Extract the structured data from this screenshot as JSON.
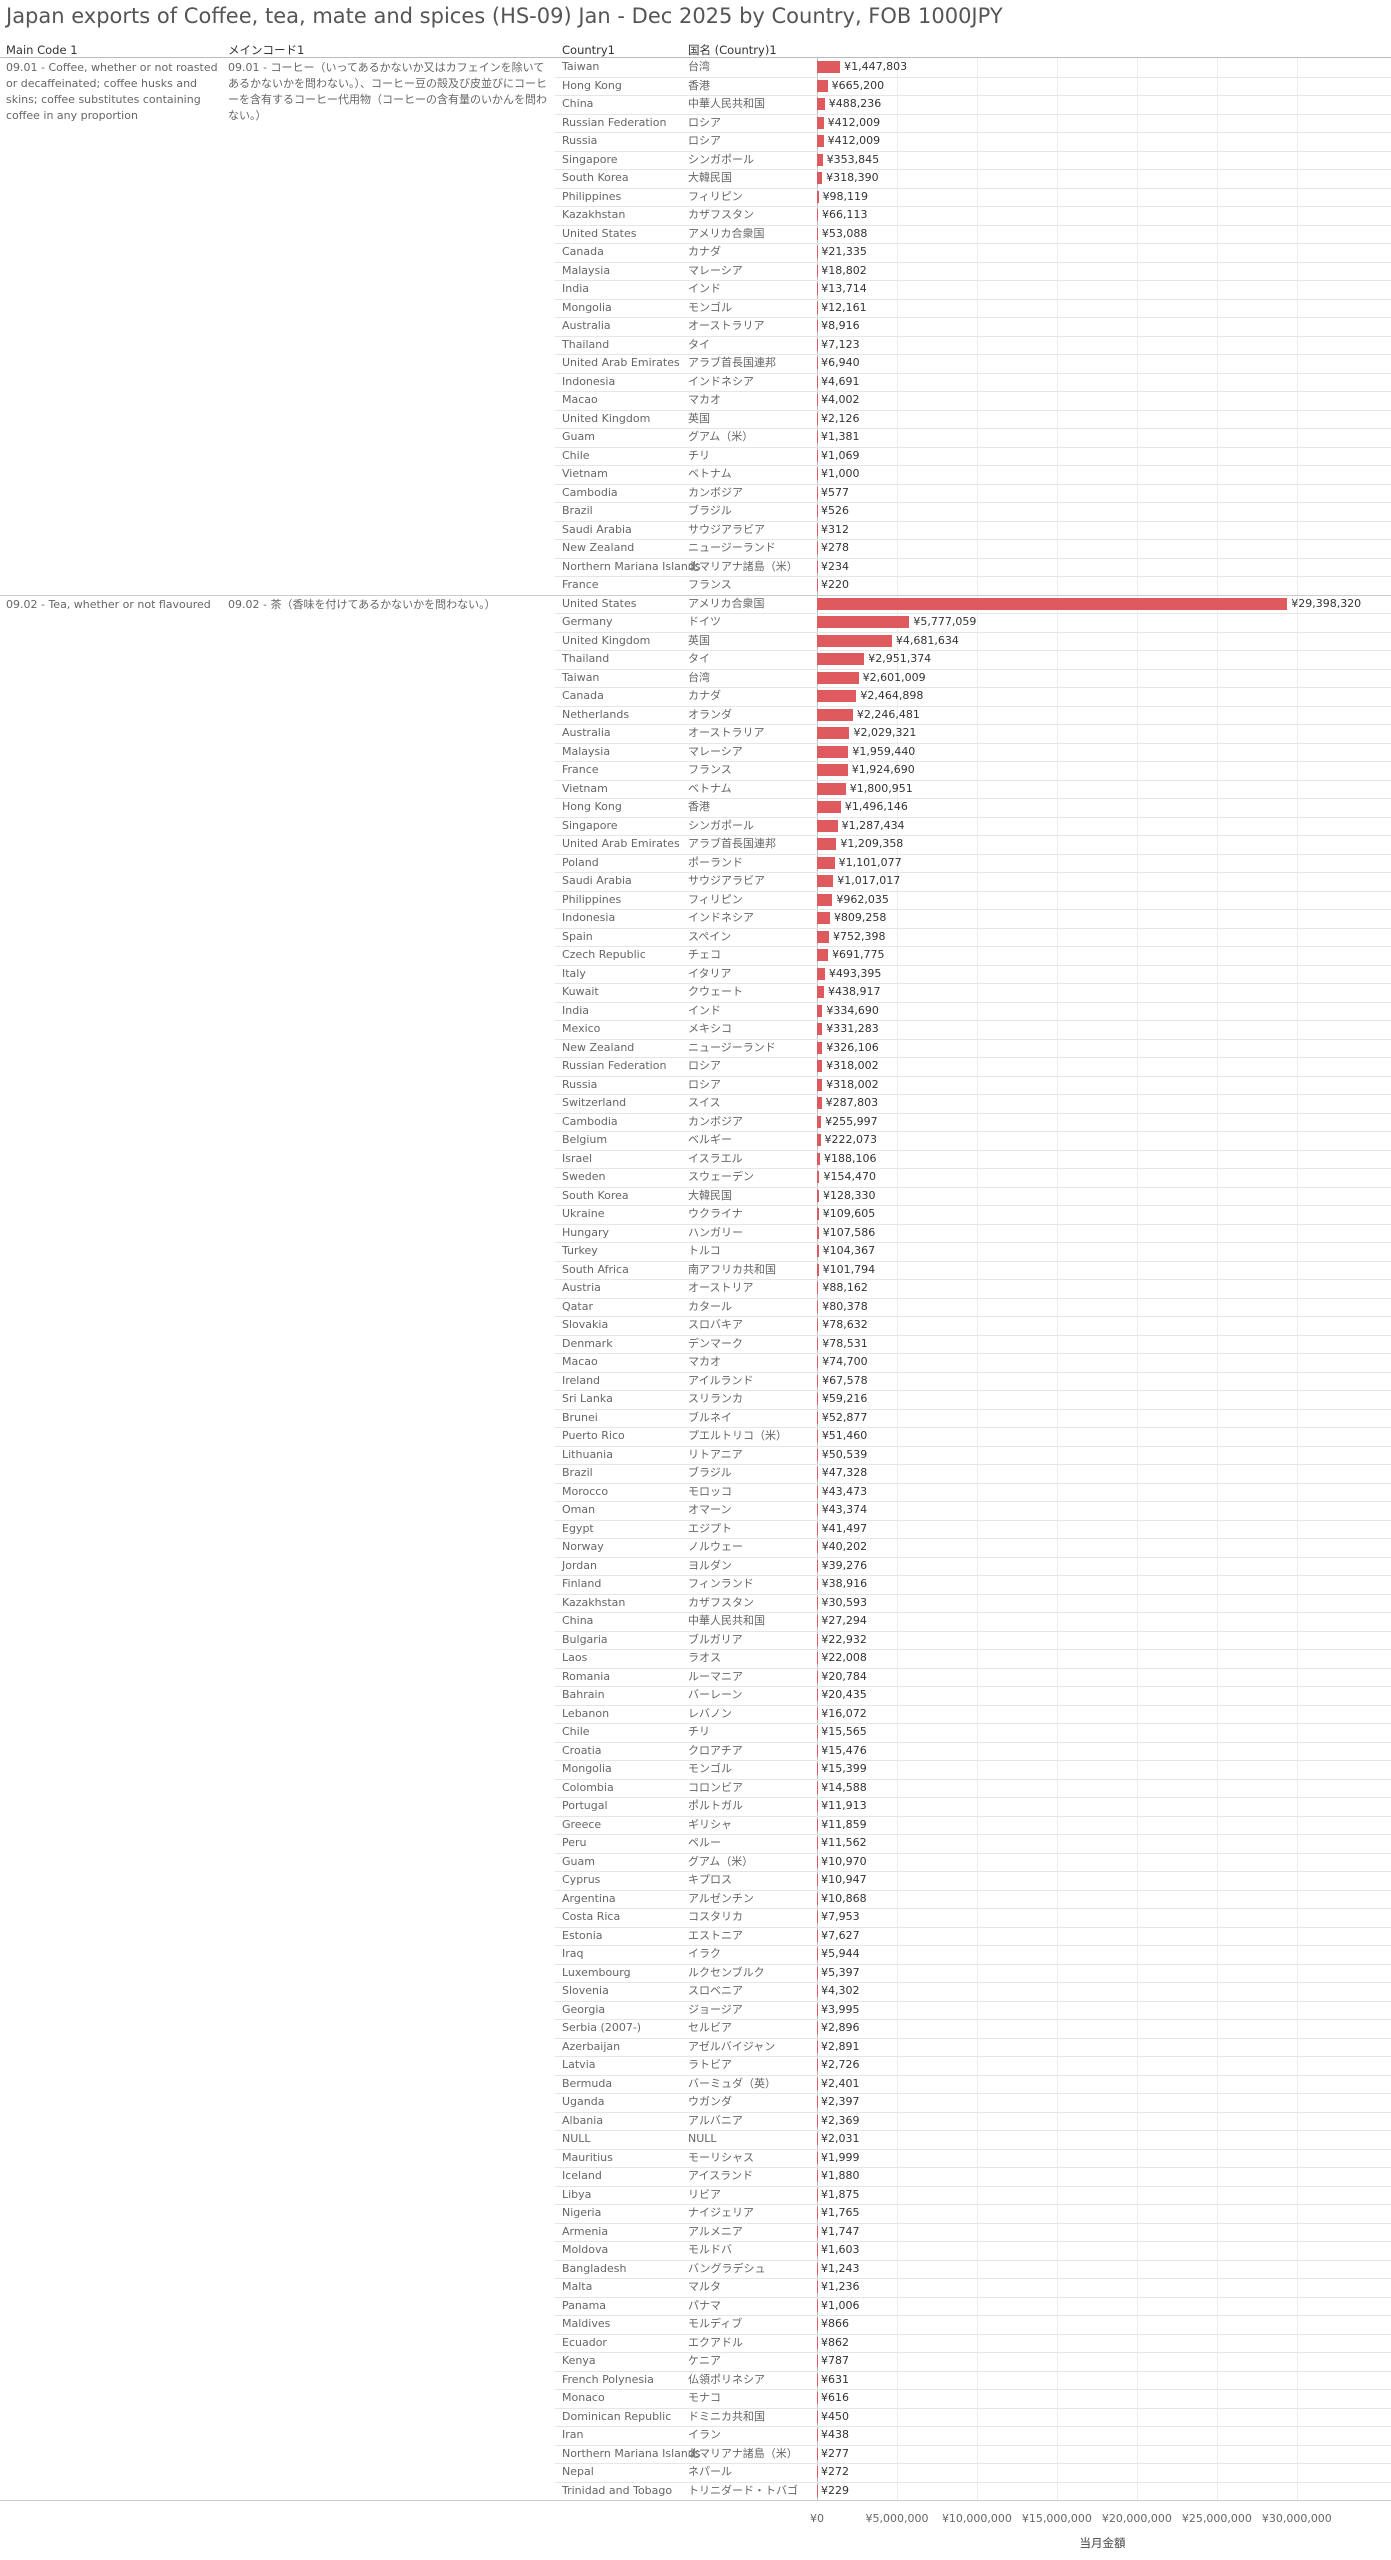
{
  "chart_data": {
    "type": "bar",
    "title": "Japan exports of Coffee, tea, mate and spices (HS-09) Jan - Dec 2025 by Country, FOB 1000JPY",
    "column_headers": [
      "Main Code 1",
      "メインコード1",
      "Country1",
      "国名 (Country)1"
    ],
    "x_label": "当月金額",
    "color": "#df5a5e",
    "grid": true,
    "xlim": [
      0,
      35700000
    ],
    "xticks": [
      {
        "value": 0,
        "label": "¥0"
      },
      {
        "value": 5000000,
        "label": "¥5,000,000"
      },
      {
        "value": 10000000,
        "label": "¥10,000,000"
      },
      {
        "value": 15000000,
        "label": "¥15,000,000"
      },
      {
        "value": 20000000,
        "label": "¥20,000,000"
      },
      {
        "value": 25000000,
        "label": "¥25,000,000"
      },
      {
        "value": 30000000,
        "label": "¥30,000,000"
      }
    ],
    "groups": [
      {
        "main_code": "09.01 - Coffee, whether or not roasted or decaffeinated; coffee husks and skins; coffee substitutes containing coffee in any proportion",
        "main_code_ja": "09.01 - コーヒー（いってあるかないか又はカフェインを除いてあるかないかを問わない。）、コーヒー豆の殻及び皮並びにコーヒーを含有するコーヒー代用物（コーヒーの含有量のいかんを問わない。）",
        "categories": [
          "Taiwan",
          "Hong Kong",
          "China",
          "Russian Federation",
          "Russia",
          "Singapore",
          "South Korea",
          "Philippines",
          "Kazakhstan",
          "United States",
          "Canada",
          "Malaysia",
          "India",
          "Mongolia",
          "Australia",
          "Thailand",
          "United Arab Emirates",
          "Indonesia",
          "Macao",
          "United Kingdom",
          "Guam",
          "Chile",
          "Vietnam",
          "Cambodia",
          "Brazil",
          "Saudi Arabia",
          "New Zealand",
          "Northern Mariana Islands",
          "France"
        ],
        "categories_ja": [
          "台湾",
          "香港",
          "中華人民共和国",
          "ロシア",
          "ロシア",
          "シンガポール",
          "大韓民国",
          "フィリピン",
          "カザフスタン",
          "アメリカ合衆国",
          "カナダ",
          "マレーシア",
          "インド",
          "モンゴル",
          "オーストラリア",
          "タイ",
          "アラブ首長国連邦",
          "インドネシア",
          "マカオ",
          "英国",
          "グアム（米）",
          "チリ",
          "ベトナム",
          "カンボジア",
          "ブラジル",
          "サウジアラビア",
          "ニュージーランド",
          "北マリアナ諸島（米）",
          "フランス"
        ],
        "values": [
          1447803,
          665200,
          488236,
          412009,
          412009,
          353845,
          318390,
          98119,
          66113,
          53088,
          21335,
          18802,
          13714,
          12161,
          8916,
          7123,
          6940,
          4691,
          4002,
          2126,
          1381,
          1069,
          1000,
          577,
          526,
          312,
          278,
          234,
          220
        ],
        "value_labels": [
          "¥1,447,803",
          "¥665,200",
          "¥488,236",
          "¥412,009",
          "¥412,009",
          "¥353,845",
          "¥318,390",
          "¥98,119",
          "¥66,113",
          "¥53,088",
          "¥21,335",
          "¥18,802",
          "¥13,714",
          "¥12,161",
          "¥8,916",
          "¥7,123",
          "¥6,940",
          "¥4,691",
          "¥4,002",
          "¥2,126",
          "¥1,381",
          "¥1,069",
          "¥1,000",
          "¥577",
          "¥526",
          "¥312",
          "¥278",
          "¥234",
          "¥220"
        ]
      },
      {
        "main_code": "09.02 - Tea, whether or not flavoured",
        "main_code_ja": "09.02 - 茶（香味を付けてあるかないかを問わない。）",
        "categories": [
          "United States",
          "Germany",
          "United Kingdom",
          "Thailand",
          "Taiwan",
          "Canada",
          "Netherlands",
          "Australia",
          "Malaysia",
          "France",
          "Vietnam",
          "Hong Kong",
          "Singapore",
          "United Arab Emirates",
          "Poland",
          "Saudi Arabia",
          "Philippines",
          "Indonesia",
          "Spain",
          "Czech Republic",
          "Italy",
          "Kuwait",
          "India",
          "Mexico",
          "New Zealand",
          "Russian Federation",
          "Russia",
          "Switzerland",
          "Cambodia",
          "Belgium",
          "Israel",
          "Sweden",
          "South Korea",
          "Ukraine",
          "Hungary",
          "Turkey",
          "South Africa",
          "Austria",
          "Qatar",
          "Slovakia",
          "Denmark",
          "Macao",
          "Ireland",
          "Sri Lanka",
          "Brunei",
          "Puerto Rico",
          "Lithuania",
          "Brazil",
          "Morocco",
          "Oman",
          "Egypt",
          "Norway",
          "Jordan",
          "Finland",
          "Kazakhstan",
          "China",
          "Bulgaria",
          "Laos",
          "Romania",
          "Bahrain",
          "Lebanon",
          "Chile",
          "Croatia",
          "Mongolia",
          "Colombia",
          "Portugal",
          "Greece",
          "Peru",
          "Guam",
          "Cyprus",
          "Argentina",
          "Costa Rica",
          "Estonia",
          "Iraq",
          "Luxembourg",
          "Slovenia",
          "Georgia",
          "Serbia (2007-)",
          "Azerbaijan",
          "Latvia",
          "Bermuda",
          "Uganda",
          "Albania",
          "NULL",
          "Mauritius",
          "Iceland",
          "Libya",
          "Nigeria",
          "Armenia",
          "Moldova",
          "Bangladesh",
          "Malta",
          "Panama",
          "Maldives",
          "Ecuador",
          "Kenya",
          "French Polynesia",
          "Monaco",
          "Dominican Republic",
          "Iran",
          "Northern Mariana Islands",
          "Nepal",
          "Trinidad and Tobago"
        ],
        "categories_ja": [
          "アメリカ合衆国",
          "ドイツ",
          "英国",
          "タイ",
          "台湾",
          "カナダ",
          "オランダ",
          "オーストラリア",
          "マレーシア",
          "フランス",
          "ベトナム",
          "香港",
          "シンガポール",
          "アラブ首長国連邦",
          "ポーランド",
          "サウジアラビア",
          "フィリピン",
          "インドネシア",
          "スペイン",
          "チェコ",
          "イタリア",
          "クウェート",
          "インド",
          "メキシコ",
          "ニュージーランド",
          "ロシア",
          "ロシア",
          "スイス",
          "カンボジア",
          "ベルギー",
          "イスラエル",
          "スウェーデン",
          "大韓民国",
          "ウクライナ",
          "ハンガリー",
          "トルコ",
          "南アフリカ共和国",
          "オーストリア",
          "カタール",
          "スロバキア",
          "デンマーク",
          "マカオ",
          "アイルランド",
          "スリランカ",
          "ブルネイ",
          "プエルトリコ（米）",
          "リトアニア",
          "ブラジル",
          "モロッコ",
          "オマーン",
          "エジプト",
          "ノルウェー",
          "ヨルダン",
          "フィンランド",
          "カザフスタン",
          "中華人民共和国",
          "ブルガリア",
          "ラオス",
          "ルーマニア",
          "バーレーン",
          "レバノン",
          "チリ",
          "クロアチア",
          "モンゴル",
          "コロンビア",
          "ポルトガル",
          "ギリシャ",
          "ペルー",
          "グアム（米）",
          "キプロス",
          "アルゼンチン",
          "コスタリカ",
          "エストニア",
          "イラク",
          "ルクセンブルク",
          "スロベニア",
          "ジョージア",
          "セルビア",
          "アゼルバイジャン",
          "ラトビア",
          "バーミュダ（英）",
          "ウガンダ",
          "アルバニア",
          "NULL",
          "モーリシャス",
          "アイスランド",
          "リビア",
          "ナイジェリア",
          "アルメニア",
          "モルドバ",
          "バングラデシュ",
          "マルタ",
          "パナマ",
          "モルディブ",
          "エクアドル",
          "ケニア",
          "仏領ポリネシア",
          "モナコ",
          "ドミニカ共和国",
          "イラン",
          "北マリアナ諸島（米）",
          "ネパール",
          "トリニダード・トバゴ"
        ],
        "values": [
          29398320,
          5777059,
          4681634,
          2951374,
          2601009,
          2464898,
          2246481,
          2029321,
          1959440,
          1924690,
          1800951,
          1496146,
          1287434,
          1209358,
          1101077,
          1017017,
          962035,
          809258,
          752398,
          691775,
          493395,
          438917,
          334690,
          331283,
          326106,
          318002,
          318002,
          287803,
          255997,
          222073,
          188106,
          154470,
          128330,
          109605,
          107586,
          104367,
          101794,
          88162,
          80378,
          78632,
          78531,
          74700,
          67578,
          59216,
          52877,
          51460,
          50539,
          47328,
          43473,
          43374,
          41497,
          40202,
          39276,
          38916,
          30593,
          27294,
          22932,
          22008,
          20784,
          20435,
          16072,
          15565,
          15476,
          15399,
          14588,
          11913,
          11859,
          11562,
          10970,
          10947,
          10868,
          7953,
          7627,
          5944,
          5397,
          4302,
          3995,
          2896,
          2891,
          2726,
          2401,
          2397,
          2369,
          2031,
          1999,
          1880,
          1875,
          1765,
          1747,
          1603,
          1243,
          1236,
          1006,
          866,
          862,
          787,
          631,
          616,
          450,
          438,
          277,
          272,
          229
        ],
        "value_labels": [
          "¥29,398,320",
          "¥5,777,059",
          "¥4,681,634",
          "¥2,951,374",
          "¥2,601,009",
          "¥2,464,898",
          "¥2,246,481",
          "¥2,029,321",
          "¥1,959,440",
          "¥1,924,690",
          "¥1,800,951",
          "¥1,496,146",
          "¥1,287,434",
          "¥1,209,358",
          "¥1,101,077",
          "¥1,017,017",
          "¥962,035",
          "¥809,258",
          "¥752,398",
          "¥691,775",
          "¥493,395",
          "¥438,917",
          "¥334,690",
          "¥331,283",
          "¥326,106",
          "¥318,002",
          "¥318,002",
          "¥287,803",
          "¥255,997",
          "¥222,073",
          "¥188,106",
          "¥154,470",
          "¥128,330",
          "¥109,605",
          "¥107,586",
          "¥104,367",
          "¥101,794",
          "¥88,162",
          "¥80,378",
          "¥78,632",
          "¥78,531",
          "¥74,700",
          "¥67,578",
          "¥59,216",
          "¥52,877",
          "¥51,460",
          "¥50,539",
          "¥47,328",
          "¥43,473",
          "¥43,374",
          "¥41,497",
          "¥40,202",
          "¥39,276",
          "¥38,916",
          "¥30,593",
          "¥27,294",
          "¥22,932",
          "¥22,008",
          "¥20,784",
          "¥20,435",
          "¥16,072",
          "¥15,565",
          "¥15,476",
          "¥15,399",
          "¥14,588",
          "¥11,913",
          "¥11,859",
          "¥11,562",
          "¥10,970",
          "¥10,947",
          "¥10,868",
          "¥7,953",
          "¥7,627",
          "¥5,944",
          "¥5,397",
          "¥4,302",
          "¥3,995",
          "¥2,896",
          "¥2,891",
          "¥2,726",
          "¥2,401",
          "¥2,397",
          "¥2,369",
          "¥2,031",
          "¥1,999",
          "¥1,880",
          "¥1,875",
          "¥1,765",
          "¥1,747",
          "¥1,603",
          "¥1,243",
          "¥1,236",
          "¥1,006",
          "¥866",
          "¥862",
          "¥787",
          "¥631",
          "¥616",
          "¥450",
          "¥438",
          "¥277",
          "¥272",
          "¥229"
        ]
      }
    ]
  }
}
